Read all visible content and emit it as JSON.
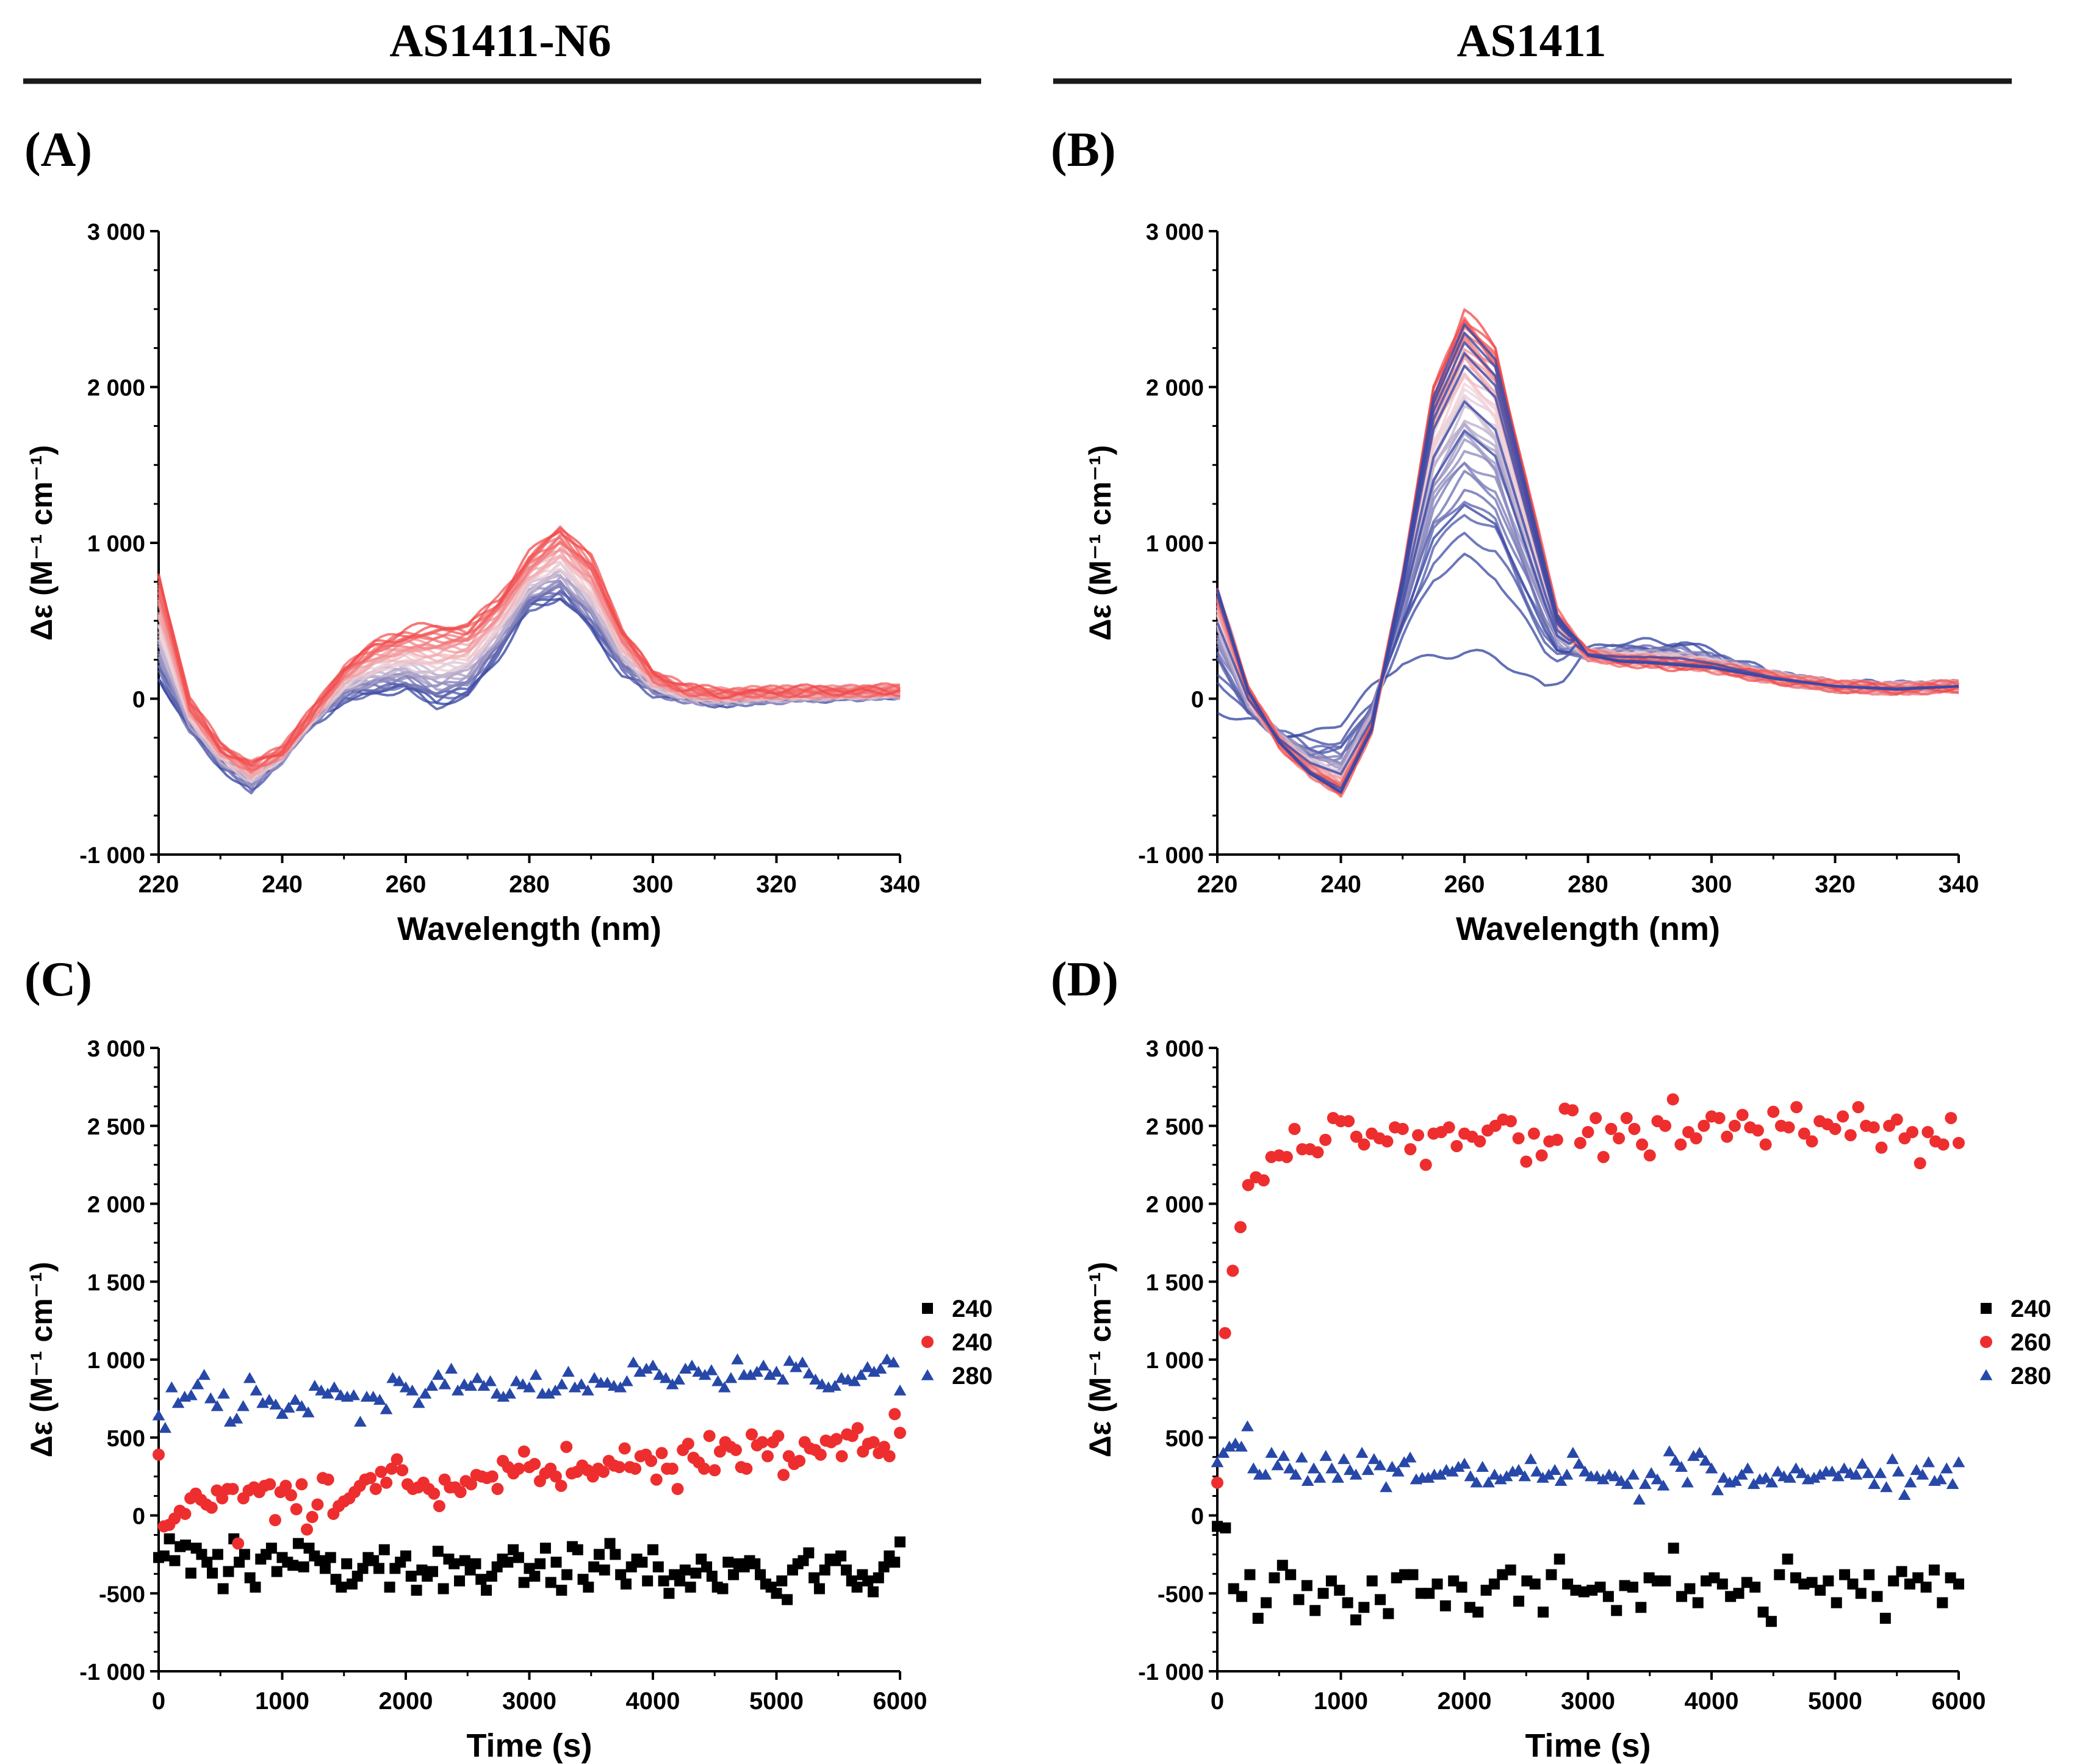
{
  "figure": {
    "left_title": "AS1411-N6",
    "right_title": "AS1411",
    "labels": {
      "a": "(A)",
      "b": "(B)",
      "c": "(C)",
      "d": "(D)"
    }
  },
  "chart_data": [
    {
      "id": "A",
      "type": "line",
      "title": "AS1411-N6",
      "xlabel": "Wavelength (nm)",
      "ylabel": "Δε (M⁻¹ cm⁻¹)",
      "xlim": [
        220,
        340
      ],
      "ylim": [
        -1000,
        3000
      ],
      "xticks": [
        220,
        240,
        260,
        280,
        300,
        320,
        340
      ],
      "yticks": [
        -1000,
        0,
        1000,
        2000,
        3000
      ],
      "ytick_labels": [
        "-1 000",
        "0",
        "1 000",
        "2 000",
        "3 000"
      ],
      "color_gradient": [
        "#2e3f9e",
        "#f0d6dc",
        "#f24a4a"
      ],
      "series_count": 40,
      "spectrum_first": {
        "x": [
          220,
          225,
          230,
          235,
          240,
          245,
          250,
          255,
          260,
          265,
          270,
          275,
          280,
          285,
          290,
          295,
          300,
          305,
          310,
          320,
          330,
          340
        ],
        "y": [
          120,
          -200,
          -420,
          -580,
          -380,
          -150,
          0,
          40,
          60,
          -40,
          20,
          280,
          580,
          650,
          450,
          180,
          40,
          0,
          -20,
          0,
          20,
          30
        ]
      },
      "spectrum_final": {
        "x": [
          220,
          225,
          230,
          235,
          240,
          245,
          250,
          255,
          260,
          265,
          270,
          275,
          280,
          285,
          290,
          295,
          300,
          305,
          310,
          320,
          330,
          340
        ],
        "y": [
          800,
          -20,
          -300,
          -420,
          -330,
          -80,
          200,
          360,
          430,
          460,
          470,
          640,
          920,
          1100,
          900,
          450,
          160,
          70,
          40,
          50,
          50,
          60
        ]
      }
    },
    {
      "id": "B",
      "type": "line",
      "title": "AS1411",
      "xlabel": "Wavelength (nm)",
      "ylabel": "Δε (M⁻¹ cm⁻¹)",
      "xlim": [
        220,
        340
      ],
      "ylim": [
        -1000,
        3000
      ],
      "xticks": [
        220,
        240,
        260,
        280,
        300,
        320,
        340
      ],
      "yticks": [
        -1000,
        0,
        1000,
        2000,
        3000
      ],
      "ytick_labels": [
        "-1 000",
        "0",
        "1 000",
        "2 000",
        "3 000"
      ],
      "color_gradient": [
        "#2e3f9e",
        "#f0d6dc",
        "#f24a4a"
      ],
      "series_count": 40,
      "spectrum_first": {
        "x": [
          220,
          225,
          230,
          235,
          240,
          245,
          250,
          255,
          260,
          265,
          270,
          273,
          276,
          280,
          285,
          290,
          295,
          300,
          310,
          320,
          330,
          340
        ],
        "y": [
          -100,
          -150,
          -200,
          -220,
          -160,
          50,
          250,
          280,
          290,
          250,
          150,
          90,
          150,
          300,
          350,
          370,
          380,
          300,
          150,
          80,
          80,
          80
        ]
      },
      "peak_intermediates": [
        1080,
        1620,
        1830,
        2090,
        2180,
        2260,
        2330,
        2390
      ],
      "spectrum_final": {
        "x": [
          220,
          225,
          230,
          235,
          240,
          245,
          250,
          255,
          260,
          265,
          270,
          275,
          280,
          285,
          290,
          300,
          310,
          320,
          330,
          340
        ],
        "y": [
          700,
          50,
          -280,
          -480,
          -600,
          -200,
          800,
          2000,
          2480,
          2250,
          1400,
          550,
          280,
          240,
          230,
          200,
          130,
          80,
          60,
          80
        ]
      }
    },
    {
      "id": "C",
      "type": "scatter",
      "xlabel": "Time (s)",
      "ylabel": "Δε (M⁻¹ cm⁻¹)",
      "xlim": [
        0,
        6000
      ],
      "ylim": [
        -1000,
        3000
      ],
      "xticks": [
        0,
        1000,
        2000,
        3000,
        4000,
        5000,
        6000
      ],
      "yticks": [
        -1000,
        -500,
        0,
        500,
        1000,
        1500,
        2000,
        2500,
        3000
      ],
      "ytick_labels": [
        "-1 000",
        "-500",
        "0",
        "500",
        "1 000",
        "1 500",
        "2 000",
        "2 500",
        "3 000"
      ],
      "legend_position": "right",
      "series": [
        {
          "name": "240",
          "marker": "square",
          "color": "#000000",
          "values": [
            -270,
            -260,
            -150,
            -290,
            -200,
            -190,
            -370,
            -210,
            -250,
            -300,
            -370,
            -250,
            -470,
            -360,
            -150,
            -300,
            -250,
            -400,
            -460,
            -280,
            -250,
            -210,
            -360,
            -270,
            -300,
            -320,
            -180,
            -330,
            -210,
            -260,
            -290,
            -340,
            -270,
            -410,
            -460,
            -310,
            -440,
            -390,
            -340,
            -270,
            -290,
            -340,
            -220,
            -460,
            -340,
            -300,
            -260,
            -390,
            -480,
            -350,
            -390,
            -360,
            -230,
            -470,
            -280,
            -310,
            -420,
            -290,
            -350,
            -310,
            -410,
            -480,
            -390,
            -330,
            -280,
            -300,
            -220,
            -270,
            -430,
            -340,
            -390,
            -310,
            -210,
            -430,
            -300,
            -480,
            -380,
            -200,
            -220,
            -410,
            -460,
            -330,
            -250,
            -350,
            -180,
            -250,
            -380,
            -440,
            -330,
            -280,
            -300,
            -420,
            -220,
            -330,
            -420,
            -500,
            -380,
            -420,
            -350,
            -460,
            -370,
            -280,
            -330,
            -390,
            -460,
            -470,
            -300,
            -380,
            -310,
            -330,
            -290,
            -310,
            -380,
            -440,
            -460,
            -500,
            -420,
            -540,
            -350,
            -310,
            -290,
            -240,
            -400,
            -470,
            -350,
            -280,
            -290,
            -260,
            -350,
            -420,
            -460,
            -380,
            -420,
            -490,
            -400,
            -330,
            -260,
            -300,
            -170
          ]
        },
        {
          "name": "240",
          "marker": "circle",
          "color": "#ee2e2e",
          "values": [
            390,
            -70,
            -60,
            -20,
            30,
            10,
            110,
            140,
            100,
            70,
            50,
            160,
            110,
            170,
            170,
            -180,
            110,
            160,
            180,
            150,
            190,
            200,
            -30,
            150,
            190,
            130,
            40,
            200,
            -90,
            -10,
            70,
            240,
            230,
            10,
            60,
            90,
            110,
            150,
            190,
            230,
            240,
            170,
            280,
            210,
            300,
            360,
            290,
            200,
            170,
            180,
            210,
            170,
            140,
            60,
            230,
            180,
            180,
            150,
            220,
            200,
            260,
            250,
            240,
            250,
            170,
            350,
            310,
            270,
            300,
            410,
            310,
            330,
            220,
            270,
            300,
            250,
            190,
            440,
            270,
            280,
            320,
            290,
            250,
            300,
            280,
            350,
            320,
            310,
            430,
            310,
            300,
            380,
            390,
            350,
            230,
            400,
            300,
            300,
            170,
            420,
            460,
            370,
            340,
            300,
            510,
            290,
            410,
            470,
            440,
            420,
            310,
            300,
            520,
            450,
            470,
            380,
            470,
            510,
            260,
            380,
            330,
            350,
            470,
            430,
            420,
            390,
            480,
            470,
            490,
            380,
            520,
            510,
            560,
            410,
            460,
            470,
            400,
            440,
            380,
            650,
            530
          ]
        },
        {
          "name": "280",
          "marker": "triangle",
          "color": "#2748a8",
          "values": [
            640,
            560,
            820,
            720,
            760,
            770,
            840,
            900,
            750,
            700,
            780,
            600,
            620,
            700,
            880,
            800,
            720,
            740,
            710,
            650,
            690,
            740,
            700,
            660,
            830,
            800,
            780,
            820,
            770,
            760,
            770,
            600,
            760,
            760,
            740,
            680,
            880,
            860,
            820,
            800,
            720,
            780,
            830,
            900,
            840,
            940,
            800,
            840,
            830,
            880,
            830,
            860,
            780,
            760,
            780,
            860,
            840,
            820,
            900,
            780,
            780,
            800,
            840,
            920,
            820,
            840,
            800,
            880,
            850,
            850,
            830,
            820,
            860,
            980,
            920,
            940,
            960,
            900,
            880,
            840,
            870,
            940,
            960,
            920,
            900,
            930,
            860,
            820,
            880,
            1000,
            900,
            900,
            920,
            960,
            900,
            920,
            870,
            990,
            950,
            980,
            910,
            870,
            840,
            820,
            830,
            880,
            870,
            860,
            900,
            950,
            920,
            940,
            1000,
            980,
            800
          ]
        }
      ]
    },
    {
      "id": "D",
      "type": "scatter",
      "xlabel": "Time (s)",
      "ylabel": "Δε (M⁻¹ cm⁻¹)",
      "xlim": [
        0,
        6000
      ],
      "ylim": [
        -1000,
        3000
      ],
      "xticks": [
        0,
        1000,
        2000,
        3000,
        4000,
        5000,
        6000
      ],
      "yticks": [
        -1000,
        -500,
        0,
        500,
        1000,
        1500,
        2000,
        2500,
        3000
      ],
      "ytick_labels": [
        "-1 000",
        "-500",
        "0",
        "500",
        "1 000",
        "1 500",
        "2 000",
        "2 500",
        "3 000"
      ],
      "legend_position": "right",
      "series": [
        {
          "name": "240",
          "marker": "square",
          "color": "#000000",
          "values": [
            -70,
            -80,
            -470,
            -520,
            -380,
            -660,
            -560,
            -400,
            -320,
            -380,
            -540,
            -450,
            -610,
            -500,
            -420,
            -480,
            -560,
            -670,
            -590,
            -420,
            -540,
            -630,
            -400,
            -380,
            -380,
            -500,
            -500,
            -440,
            -580,
            -420,
            -460,
            -590,
            -620,
            -480,
            -440,
            -380,
            -350,
            -550,
            -420,
            -440,
            -620,
            -380,
            -280,
            -440,
            -480,
            -490,
            -480,
            -460,
            -520,
            -610,
            -450,
            -460,
            -590,
            -400,
            -420,
            -420,
            -210,
            -520,
            -470,
            -560,
            -420,
            -400,
            -440,
            -520,
            -500,
            -430,
            -460,
            -620,
            -680,
            -380,
            -280,
            -400,
            -440,
            -430,
            -480,
            -420,
            -560,
            -380,
            -440,
            -500,
            -380,
            -520,
            -660,
            -420,
            -360,
            -440,
            -400,
            -460,
            -350,
            -560,
            -400,
            -440
          ]
        },
        {
          "name": "260",
          "marker": "circle",
          "color": "#ee2e2e",
          "values": [
            210,
            1170,
            1570,
            1850,
            2120,
            2170,
            2150,
            2300,
            2310,
            2300,
            2480,
            2350,
            2350,
            2330,
            2410,
            2550,
            2530,
            2530,
            2430,
            2380,
            2450,
            2420,
            2400,
            2490,
            2480,
            2350,
            2440,
            2250,
            2450,
            2460,
            2490,
            2370,
            2450,
            2430,
            2400,
            2470,
            2500,
            2540,
            2530,
            2420,
            2270,
            2450,
            2310,
            2400,
            2410,
            2610,
            2600,
            2390,
            2460,
            2550,
            2300,
            2480,
            2420,
            2550,
            2480,
            2380,
            2310,
            2530,
            2500,
            2670,
            2380,
            2460,
            2420,
            2500,
            2560,
            2550,
            2430,
            2500,
            2570,
            2490,
            2470,
            2380,
            2590,
            2500,
            2490,
            2620,
            2450,
            2400,
            2530,
            2510,
            2480,
            2560,
            2440,
            2620,
            2500,
            2490,
            2360,
            2500,
            2540,
            2420,
            2460,
            2260,
            2460,
            2400,
            2380,
            2550,
            2390
          ]
        },
        {
          "name": "280",
          "marker": "triangle",
          "color": "#2748a8",
          "values": [
            340,
            400,
            440,
            460,
            440,
            570,
            300,
            260,
            260,
            400,
            320,
            380,
            300,
            260,
            370,
            220,
            300,
            240,
            380,
            300,
            240,
            360,
            290,
            260,
            400,
            290,
            360,
            320,
            180,
            310,
            280,
            340,
            370,
            230,
            240,
            240,
            260,
            260,
            290,
            280,
            310,
            330,
            250,
            210,
            310,
            210,
            260,
            230,
            250,
            280,
            290,
            250,
            360,
            280,
            240,
            260,
            290,
            220,
            260,
            400,
            330,
            280,
            250,
            250,
            230,
            260,
            250,
            220,
            200,
            260,
            100,
            200,
            270,
            230,
            190,
            410,
            350,
            310,
            210,
            380,
            400,
            350,
            300,
            160,
            240,
            210,
            220,
            260,
            300,
            200,
            230,
            240,
            210,
            280,
            250,
            240,
            300,
            270,
            230,
            240,
            260,
            280,
            280,
            250,
            300,
            270,
            260,
            330,
            270,
            200,
            270,
            180,
            360,
            280,
            130,
            210,
            290,
            260,
            340,
            220,
            230,
            300,
            200,
            340
          ]
        }
      ]
    }
  ]
}
